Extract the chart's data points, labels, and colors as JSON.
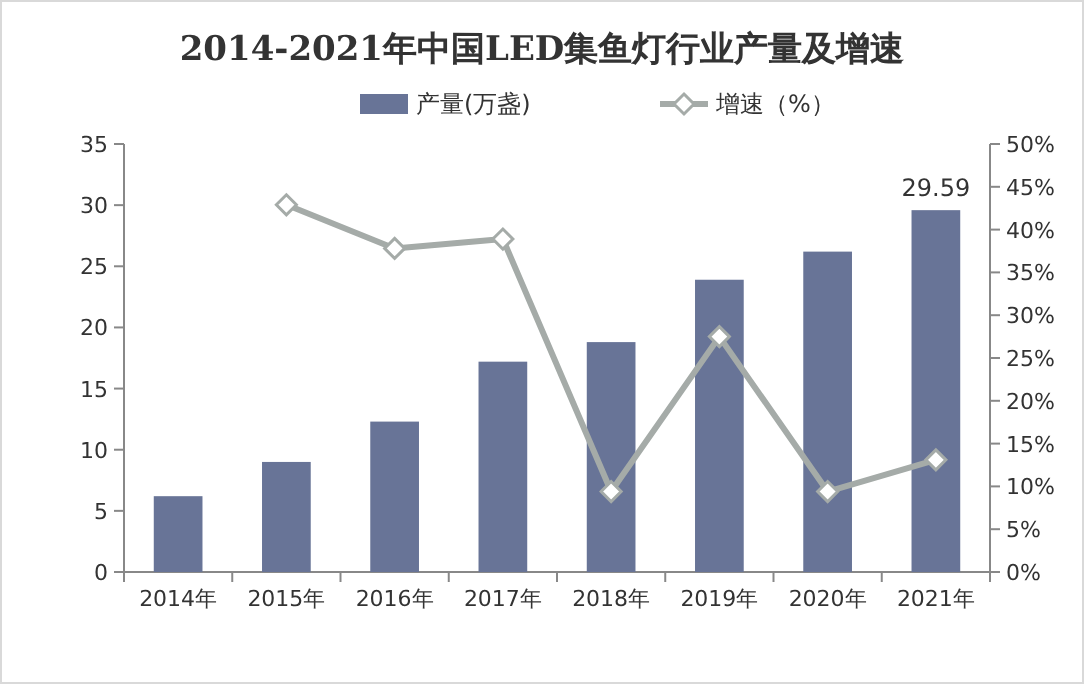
{
  "chart_data": {
    "type": "bar",
    "title": "2014-2021年中国LED集鱼灯行业产量及增速",
    "categories": [
      "2014年",
      "2015年",
      "2016年",
      "2017年",
      "2018年",
      "2019年",
      "2020年",
      "2021年"
    ],
    "series": [
      {
        "name": "产量(万盏)",
        "color": "#687497",
        "values": [
          6.2,
          9.0,
          12.3,
          17.2,
          18.8,
          23.9,
          26.2,
          29.59
        ],
        "value_labels": [
          null,
          null,
          null,
          null,
          null,
          null,
          null,
          "29.59"
        ]
      },
      {
        "name": "增速（%）",
        "type": "line",
        "axis": "y2",
        "color": "#a5aba8",
        "marker": "diamond",
        "values": [
          null,
          42.9,
          37.8,
          38.9,
          9.4,
          27.5,
          9.4,
          13.1
        ]
      }
    ],
    "ylim": [
      0,
      35
    ],
    "yticks": [
      0,
      5,
      10,
      15,
      20,
      25,
      30,
      35
    ],
    "y2lim": [
      0,
      50
    ],
    "y2ticks": [
      {
        "value": 0,
        "label": "0%"
      },
      {
        "value": 5,
        "label": "5%"
      },
      {
        "value": 10,
        "label": "10%"
      },
      {
        "value": 15,
        "label": "15%"
      },
      {
        "value": 20,
        "label": "20%"
      },
      {
        "value": 25,
        "label": "25%"
      },
      {
        "value": 30,
        "label": "30%"
      },
      {
        "value": 35,
        "label": "35%"
      },
      {
        "value": 40,
        "label": "40%"
      },
      {
        "value": 45,
        "label": "45%"
      },
      {
        "value": 50,
        "label": "50%"
      }
    ],
    "grid": false,
    "legend": "top"
  }
}
